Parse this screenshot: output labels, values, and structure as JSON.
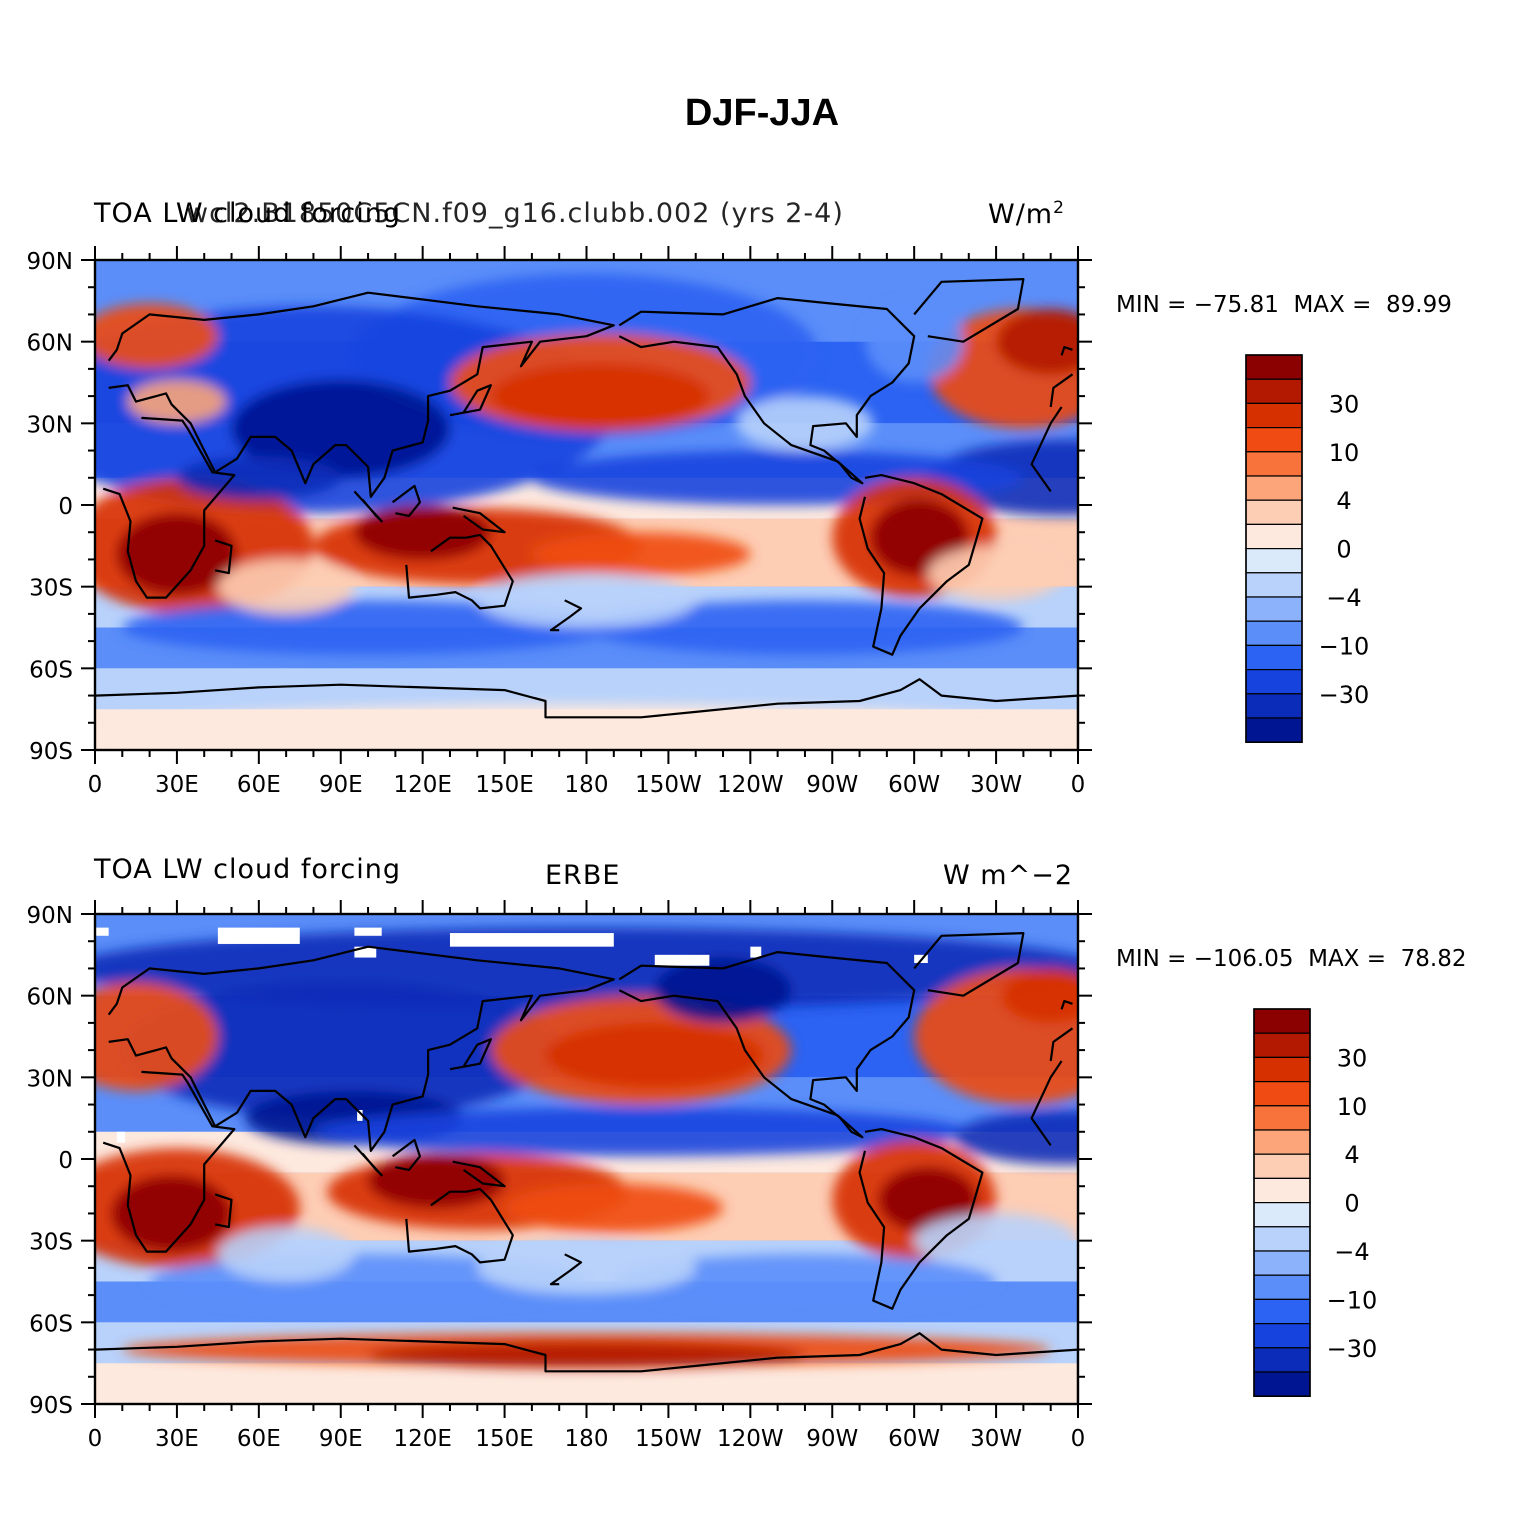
{
  "title": "DJF-JJA",
  "panels": [
    {
      "left_title": "TOA LW cloud forcing",
      "center_title": "wcl2.B1850C5CN.f09_g16.clubb.002 (yrs 2-4)",
      "units": "W/m",
      "units_sup": "2",
      "stats": "MIN = −75.81  MAX =  89.99"
    },
    {
      "left_title": "TOA LW cloud forcing",
      "center_title": "ERBE",
      "units": "W m^−2",
      "units_sup": "",
      "stats": "MIN = −106.05  MAX =  78.82"
    }
  ],
  "axes": {
    "lat_labels": [
      "90N",
      "60N",
      "30N",
      "0",
      "30S",
      "60S",
      "90S"
    ],
    "lon_labels": [
      "0",
      "30E",
      "60E",
      "90E",
      "120E",
      "150E",
      "180",
      "150W",
      "120W",
      "90W",
      "60W",
      "30W",
      "0"
    ]
  },
  "colorbar": {
    "colors": [
      "#8b0000",
      "#b31800",
      "#d62f00",
      "#ef4b13",
      "#f7733b",
      "#fca57a",
      "#fdcdb4",
      "#fde9de",
      "#dbeafb",
      "#b8d2fb",
      "#8bb2fb",
      "#5b8ef9",
      "#2c63f2",
      "#1643de",
      "#0a2cb8",
      "#001591"
    ],
    "labels": [
      "30",
      "10",
      "4",
      "0",
      "−4",
      "−10",
      "−30"
    ]
  },
  "chart_data": [
    {
      "type": "heatmap",
      "title": "TOA LW cloud forcing",
      "subtitle": "wcl2.B1850C5CN.f09_g16.clubb.002 (yrs 2-4)",
      "units": "W/m2",
      "min": -75.81,
      "max": 89.99,
      "x_range": [
        0,
        360
      ],
      "y_range": [
        -90,
        90
      ],
      "levels": [
        -30,
        -10,
        -4,
        0,
        4,
        10,
        30
      ]
    },
    {
      "type": "heatmap",
      "title": "TOA LW cloud forcing",
      "subtitle": "ERBE",
      "units": "W m^-2",
      "min": -106.05,
      "max": 78.82,
      "x_range": [
        0,
        360
      ],
      "y_range": [
        -90,
        90
      ],
      "levels": [
        -30,
        -10,
        -4,
        0,
        4,
        10,
        30
      ]
    }
  ]
}
